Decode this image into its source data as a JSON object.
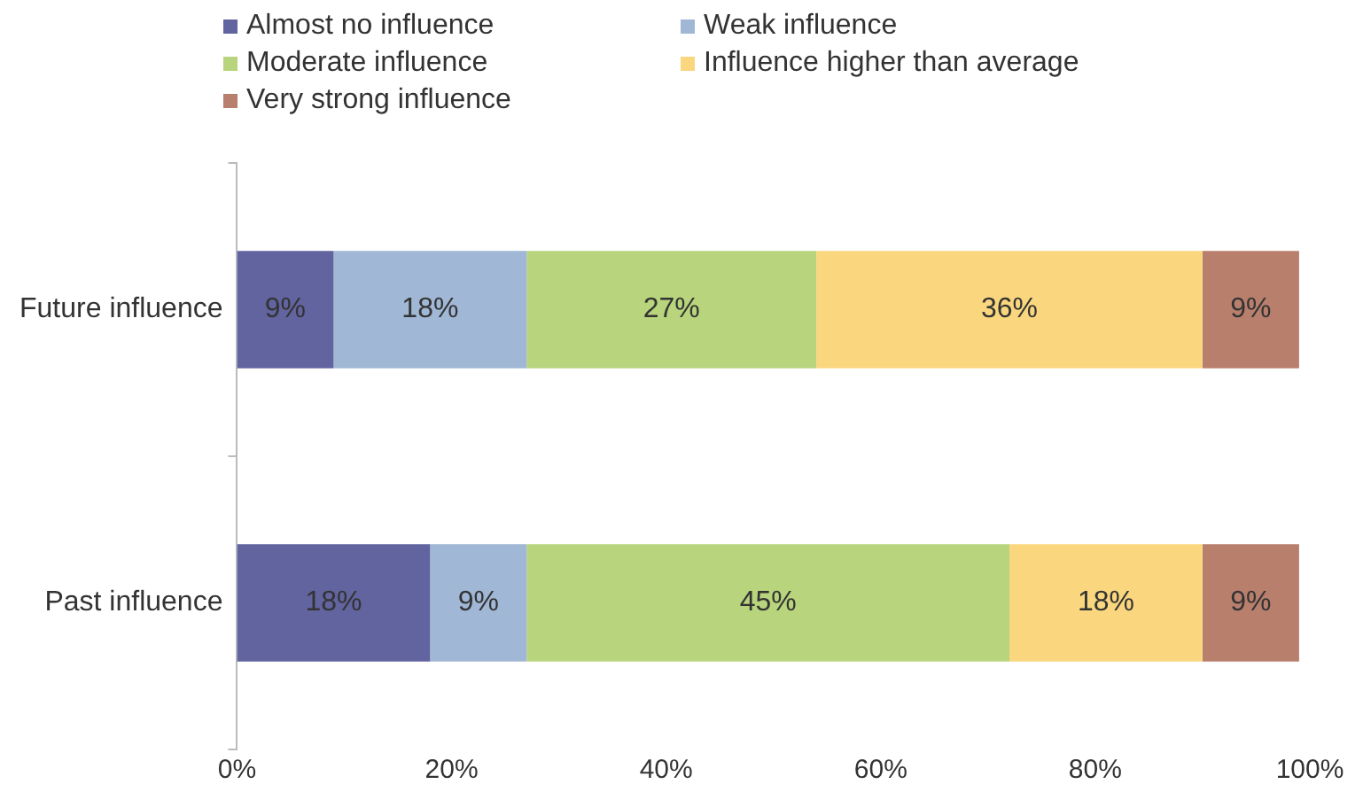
{
  "chart_data": {
    "type": "bar",
    "orientation": "horizontal",
    "stacked": true,
    "categories": [
      "Future influence",
      "Past influence"
    ],
    "series": [
      {
        "name": "Almost no influence",
        "color": "#61649f",
        "values": [
          9,
          18
        ],
        "value_labels": [
          "9%",
          "18%"
        ]
      },
      {
        "name": "Weak influence",
        "color": "#a0b7d5",
        "values": [
          18,
          9
        ],
        "value_labels": [
          "18%",
          "9%"
        ]
      },
      {
        "name": "Moderate influence",
        "color": "#b8d47c",
        "values": [
          27,
          45
        ],
        "value_labels": [
          "27%",
          "45%"
        ]
      },
      {
        "name": "Influence higher than average",
        "color": "#fad77e",
        "values": [
          36,
          18
        ],
        "value_labels": [
          "36%",
          "18%"
        ]
      },
      {
        "name": "Very strong influence",
        "color": "#b97f6d",
        "values": [
          9,
          9
        ],
        "value_labels": [
          "9%",
          "9%"
        ]
      }
    ],
    "xlim": [
      0,
      100
    ],
    "xticks": [
      {
        "value": 0,
        "label": "0%"
      },
      {
        "value": 20,
        "label": "20%"
      },
      {
        "value": 40,
        "label": "40%"
      },
      {
        "value": 60,
        "label": "60%"
      },
      {
        "value": 80,
        "label": "80%"
      },
      {
        "value": 100,
        "label": "100%"
      }
    ],
    "grid": false,
    "legend": "top left"
  }
}
